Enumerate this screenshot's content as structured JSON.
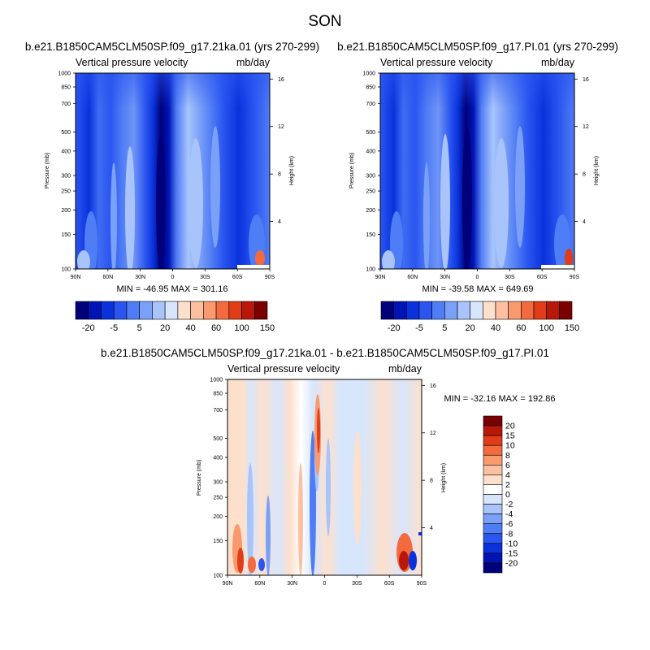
{
  "title": "SON",
  "chart_data": [
    {
      "type": "heatmap",
      "title": "b.e21.B1850CAM5CLM50SP.f09_g17.21ka.01 (yrs 270-299)",
      "left_label": "Vertical pressure velocity",
      "right_label": "mb/day",
      "ylabel": "Pressure (mb)",
      "ylabel_right": "Height (km)",
      "x_ticks": [
        "90N",
        "60N",
        "30N",
        "0",
        "30S",
        "60S",
        "90S"
      ],
      "y_ticks": [
        "100",
        "150",
        "200",
        "250",
        "300",
        "400",
        "500",
        "700",
        "850",
        "1000"
      ],
      "y_ticks_right": [
        "16",
        "12",
        "8",
        "4"
      ],
      "stats": "MIN = -46.95  MAX = 301.16",
      "colorbar_labels": [
        "-20",
        "-5",
        "5",
        "20",
        "40",
        "60",
        "100",
        "150"
      ],
      "colorbar_colors": [
        "#00007a",
        "#0014b4",
        "#0a32dc",
        "#2a55f0",
        "#4f7df5",
        "#7aa0f8",
        "#a8c4fb",
        "#d8e6fd",
        "#fde0cc",
        "#fcc0a0",
        "#f8996e",
        "#f36a3f",
        "#e03c17",
        "#b8180a",
        "#7a0000"
      ]
    },
    {
      "type": "heatmap",
      "title": "b.e21.B1850CAM5CLM50SP.f09_g17.PI.01 (yrs 270-299)",
      "left_label": "Vertical pressure velocity",
      "right_label": "mb/day",
      "ylabel": "Pressure (mb)",
      "ylabel_right": "Height (km)",
      "x_ticks": [
        "90N",
        "60N",
        "30N",
        "0",
        "30S",
        "60S",
        "90S"
      ],
      "y_ticks": [
        "100",
        "150",
        "200",
        "250",
        "300",
        "400",
        "500",
        "700",
        "850",
        "1000"
      ],
      "y_ticks_right": [
        "16",
        "12",
        "8",
        "4"
      ],
      "stats": "MIN = -39.58  MAX = 649.69",
      "colorbar_labels": [
        "-20",
        "-5",
        "5",
        "20",
        "40",
        "60",
        "100",
        "150"
      ],
      "colorbar_colors": [
        "#00007a",
        "#0014b4",
        "#0a32dc",
        "#2a55f0",
        "#4f7df5",
        "#7aa0f8",
        "#a8c4fb",
        "#d8e6fd",
        "#fde0cc",
        "#fcc0a0",
        "#f8996e",
        "#f36a3f",
        "#e03c17",
        "#b8180a",
        "#7a0000"
      ]
    },
    {
      "type": "heatmap",
      "title": "b.e21.B1850CAM5CLM50SP.f09_g17.21ka.01 - b.e21.B1850CAM5CLM50SP.f09_g17.PI.01",
      "left_label": "Vertical pressure velocity",
      "right_label": "mb/day",
      "ylabel": "Pressure (mb)",
      "ylabel_right": "Height (km)",
      "x_ticks": [
        "90N",
        "60N",
        "30N",
        "0",
        "30S",
        "60S",
        "90S"
      ],
      "y_ticks": [
        "100",
        "150",
        "200",
        "250",
        "300",
        "400",
        "500",
        "700",
        "850",
        "1000"
      ],
      "y_ticks_right": [
        "16",
        "12",
        "8",
        "4"
      ],
      "stats": "MIN = -32.16  MAX = 192.86",
      "colorbar_labels": [
        "20",
        "15",
        "10",
        "8",
        "6",
        "4",
        "2",
        "0",
        "-2",
        "-4",
        "-6",
        "-8",
        "-10",
        "-15",
        "-20"
      ],
      "colorbar_colors": [
        "#7a0000",
        "#b8180a",
        "#e03c17",
        "#f36a3f",
        "#f8996e",
        "#fcc0a0",
        "#fde0cc",
        "#ffffff",
        "#d8e6fd",
        "#a8c4fb",
        "#7aa0f8",
        "#4f7df5",
        "#2a55f0",
        "#0a32dc",
        "#0014b4",
        "#00007a"
      ]
    }
  ]
}
